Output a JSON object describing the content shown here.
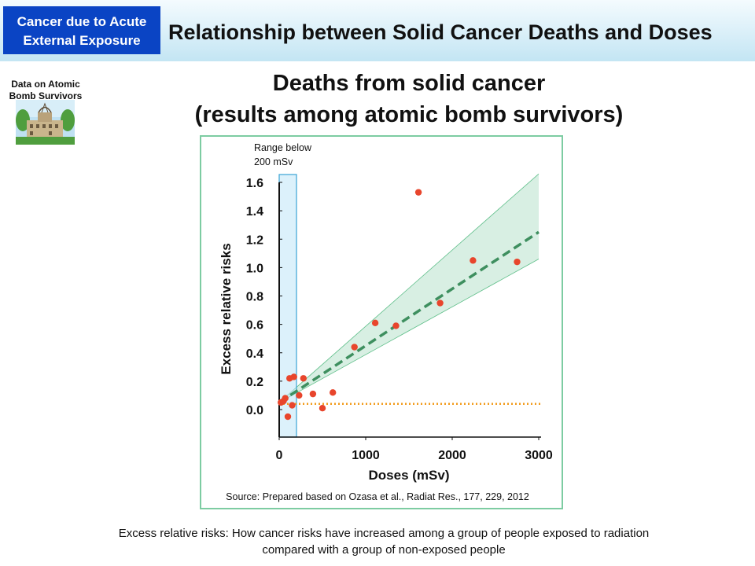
{
  "header": {
    "badge": "Cancer due to Acute\nExternal Exposure",
    "title": "Relationship between Solid Cancer Deaths and Doses"
  },
  "side": {
    "label": "Data on Atomic\nBomb Survivors",
    "picture_icon": "atomic-bomb-dome-icon"
  },
  "main_title": "Deaths from solid cancer\n(results among atomic bomb survivors)",
  "chart_data": {
    "type": "scatter",
    "title": "",
    "xlabel": "Doses (mSv)",
    "ylabel": "Excess relative risks",
    "xlim": [
      0,
      3000
    ],
    "ylim": [
      -0.1,
      1.6
    ],
    "x_ticks": [
      "0",
      "1000",
      "2000",
      "3000"
    ],
    "y_ticks": [
      "0.0",
      "0.2",
      "0.4",
      "0.6",
      "0.8",
      "1.0",
      "1.2",
      "1.4",
      "1.6"
    ],
    "highlight_range": {
      "from": 0,
      "to": 200,
      "label": "Range below\n200 mSv"
    },
    "points": [
      {
        "x": 20,
        "y": 0.05
      },
      {
        "x": 50,
        "y": 0.06
      },
      {
        "x": 70,
        "y": 0.08
      },
      {
        "x": 100,
        "y": -0.05
      },
      {
        "x": 120,
        "y": 0.22
      },
      {
        "x": 150,
        "y": 0.03
      },
      {
        "x": 170,
        "y": 0.23
      },
      {
        "x": 230,
        "y": 0.1
      },
      {
        "x": 280,
        "y": 0.22
      },
      {
        "x": 390,
        "y": 0.11
      },
      {
        "x": 500,
        "y": 0.01
      },
      {
        "x": 620,
        "y": 0.12
      },
      {
        "x": 870,
        "y": 0.44
      },
      {
        "x": 1110,
        "y": 0.61
      },
      {
        "x": 1350,
        "y": 0.59
      },
      {
        "x": 1610,
        "y": 1.53
      },
      {
        "x": 1860,
        "y": 0.75
      },
      {
        "x": 2240,
        "y": 1.05
      },
      {
        "x": 2750,
        "y": 1.04
      }
    ],
    "fit_line": {
      "x": [
        0,
        3000
      ],
      "y": [
        0.05,
        1.25
      ],
      "style": "dashed",
      "color": "#3e8f5f"
    },
    "confidence_band": {
      "x": [
        0,
        3000
      ],
      "lower": [
        0.05,
        1.06
      ],
      "upper": [
        0.05,
        1.66
      ],
      "color": "#d8efe3"
    },
    "reference_line": {
      "y": 0.04,
      "style": "dotted",
      "color": "#f29a1a"
    },
    "point_color": "#e8452c",
    "source": "Source: Prepared based on Ozasa et al., Radiat Res., 177, 229, 2012"
  },
  "footer": "Excess relative risks: How cancer risks have increased among a group of people exposed to radiation\ncompared with a group of non-exposed people"
}
